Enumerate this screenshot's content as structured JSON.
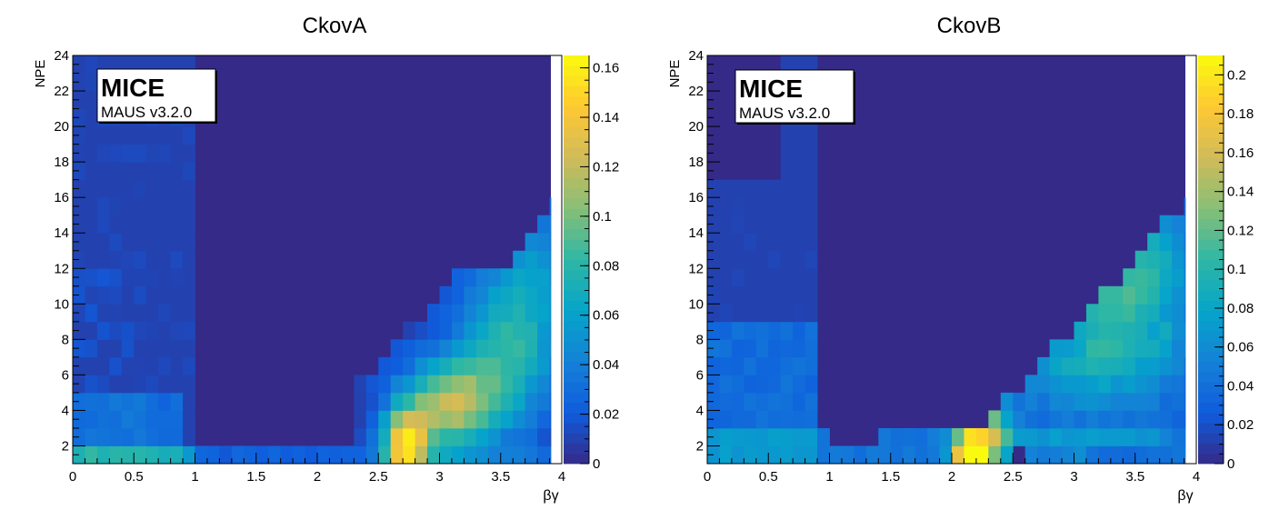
{
  "chart_data": [
    {
      "type": "heatmap",
      "title": "CkovA",
      "xlabel": "βγ",
      "ylabel": "NPE",
      "xlim": [
        0,
        4
      ],
      "ylim": [
        1,
        24
      ],
      "x_bins": 40,
      "y_bins": 23,
      "x_ticks": [
        "0",
        "0.5",
        "1",
        "1.5",
        "2",
        "2.5",
        "3",
        "3.5",
        "4"
      ],
      "y_ticks": [
        "2",
        "4",
        "6",
        "8",
        "10",
        "12",
        "14",
        "16",
        "18",
        "20",
        "22",
        "24"
      ],
      "z_range": [
        0,
        0.165
      ],
      "colorbar_ticks": [
        "0",
        "0.02",
        "0.04",
        "0.06",
        "0.08",
        "0.1",
        "0.12",
        "0.14",
        "0.16"
      ],
      "colorbar_values": [
        0,
        0.02,
        0.04,
        0.06,
        0.08,
        0.1,
        0.12,
        0.14,
        0.16
      ],
      "stamp": {
        "title": "MICE",
        "subtitle": "MAUS v3.2.0"
      },
      "peaks": [
        {
          "x_range": [
            2.55,
            2.85
          ],
          "y_range": [
            1,
            4
          ],
          "value": 0.163
        },
        {
          "x_range": [
            2.8,
            3.4
          ],
          "y_range": [
            2.5,
            6
          ],
          "value": 0.14
        }
      ]
    },
    {
      "type": "heatmap",
      "title": "CkovB",
      "xlabel": "βγ",
      "ylabel": "NPE",
      "xlim": [
        0,
        4
      ],
      "ylim": [
        1,
        24
      ],
      "x_bins": 40,
      "y_bins": 23,
      "x_ticks": [
        "0",
        "0.5",
        "1",
        "1.5",
        "2",
        "2.5",
        "3",
        "3.5",
        "4"
      ],
      "y_ticks": [
        "2",
        "4",
        "6",
        "8",
        "10",
        "12",
        "14",
        "16",
        "18",
        "20",
        "22",
        "24"
      ],
      "z_range": [
        0,
        0.21
      ],
      "colorbar_ticks": [
        "0",
        "0.02",
        "0.04",
        "0.06",
        "0.08",
        "0.1",
        "0.12",
        "0.14",
        "0.16",
        "0.18",
        "0.2"
      ],
      "colorbar_values": [
        0,
        0.02,
        0.04,
        0.06,
        0.08,
        0.1,
        0.12,
        0.14,
        0.16,
        0.18,
        0.2
      ],
      "stamp": {
        "title": "MICE",
        "subtitle": "MAUS v3.2.0"
      },
      "peaks": [
        {
          "x_range": [
            2.05,
            2.25
          ],
          "y_range": [
            1,
            2
          ],
          "value": 0.205
        },
        {
          "x_range": [
            2.1,
            2.4
          ],
          "y_range": [
            2,
            4
          ],
          "value": 0.15
        }
      ]
    }
  ],
  "colors": {
    "palette": [
      "#352a87",
      "#0f5cdd",
      "#1481d6",
      "#06a4ca",
      "#2eb7a4",
      "#87bf77",
      "#d1bb59",
      "#fec832",
      "#f9fb0e"
    ]
  }
}
